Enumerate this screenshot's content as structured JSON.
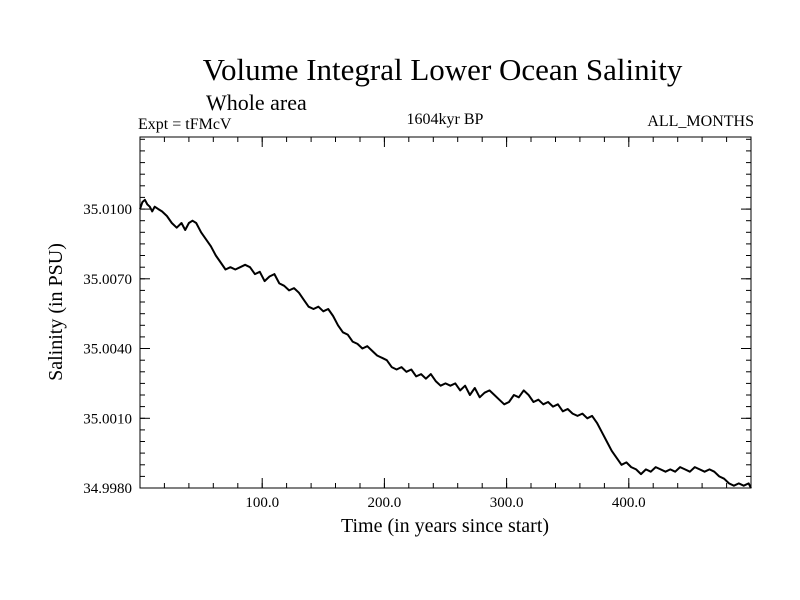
{
  "header": {
    "title": "Volume Integral Lower Ocean Salinity",
    "subtitle": "Whole area",
    "experiment": "Expt = tFMcV",
    "period": "1604kyr BP",
    "months": "ALL_MONTHS"
  },
  "chart_data": {
    "type": "line",
    "title": "Volume Integral Lower Ocean Salinity",
    "xlabel": "Time (in years since start)",
    "ylabel": "Salinity (in PSU)",
    "xlim": [
      0,
      500
    ],
    "ylim": [
      34.998,
      35.0131
    ],
    "x_ticks": [
      100,
      200,
      300,
      400
    ],
    "x_tick_labels": [
      "100.0",
      "200.0",
      "300.0",
      "400.0"
    ],
    "y_ticks": [
      34.998,
      35.001,
      35.004,
      35.007,
      35.01
    ],
    "y_tick_labels": [
      "34.9980",
      "35.0010",
      "35.0040",
      "35.0070",
      "35.0100"
    ],
    "grid": false,
    "series": [
      {
        "name": "Salinity",
        "x": [
          0,
          2,
          4,
          6,
          8,
          10,
          12,
          15,
          18,
          22,
          26,
          30,
          34,
          37,
          40,
          43,
          46,
          50,
          54,
          58,
          62,
          66,
          70,
          74,
          78,
          82,
          86,
          90,
          94,
          98,
          102,
          106,
          110,
          114,
          118,
          122,
          126,
          130,
          134,
          138,
          142,
          146,
          150,
          154,
          158,
          162,
          166,
          170,
          174,
          178,
          182,
          186,
          190,
          194,
          198,
          202,
          206,
          210,
          214,
          218,
          222,
          226,
          230,
          234,
          238,
          242,
          246,
          250,
          254,
          258,
          262,
          266,
          270,
          274,
          278,
          282,
          286,
          290,
          294,
          298,
          302,
          306,
          310,
          314,
          318,
          322,
          326,
          330,
          334,
          338,
          342,
          346,
          350,
          354,
          358,
          362,
          366,
          370,
          374,
          378,
          382,
          386,
          390,
          394,
          398,
          402,
          406,
          410,
          414,
          418,
          422,
          426,
          430,
          434,
          438,
          442,
          446,
          450,
          454,
          458,
          462,
          466,
          470,
          474,
          478,
          482,
          486,
          490,
          494,
          498,
          500
        ],
        "y": [
          35.01,
          35.0103,
          35.0104,
          35.0102,
          35.0101,
          35.0099,
          35.0101,
          35.01,
          35.0099,
          35.0097,
          35.0094,
          35.0092,
          35.0094,
          35.0091,
          35.0094,
          35.0095,
          35.0094,
          35.009,
          35.0087,
          35.0084,
          35.008,
          35.0077,
          35.0074,
          35.0075,
          35.0074,
          35.0075,
          35.0076,
          35.0075,
          35.0072,
          35.0073,
          35.0069,
          35.0071,
          35.0072,
          35.0068,
          35.0067,
          35.0065,
          35.0066,
          35.0064,
          35.0061,
          35.0058,
          35.0057,
          35.0058,
          35.0056,
          35.0057,
          35.0054,
          35.005,
          35.0047,
          35.0046,
          35.0043,
          35.0042,
          35.004,
          35.0041,
          35.0039,
          35.0037,
          35.0036,
          35.0035,
          35.0032,
          35.0031,
          35.0032,
          35.003,
          35.0031,
          35.0028,
          35.0029,
          35.0027,
          35.0029,
          35.0026,
          35.0024,
          35.0025,
          35.0024,
          35.0025,
          35.0022,
          35.0024,
          35.002,
          35.0023,
          35.0019,
          35.0021,
          35.0022,
          35.002,
          35.0018,
          35.0016,
          35.0017,
          35.002,
          35.0019,
          35.0022,
          35.002,
          35.0017,
          35.0018,
          35.0016,
          35.0017,
          35.0015,
          35.0016,
          35.0013,
          35.0014,
          35.0012,
          35.0011,
          35.0012,
          35.001,
          35.0011,
          35.0008,
          35.0004,
          35.0,
          34.9996,
          34.9993,
          34.999,
          34.9991,
          34.9989,
          34.9988,
          34.9986,
          34.9988,
          34.9987,
          34.9989,
          34.9988,
          34.9987,
          34.9988,
          34.9987,
          34.9989,
          34.9988,
          34.9987,
          34.9989,
          34.9988,
          34.9987,
          34.9988,
          34.9987,
          34.9985,
          34.9984,
          34.9982,
          34.9981,
          34.9982,
          34.9981,
          34.9982,
          34.998
        ]
      }
    ]
  }
}
